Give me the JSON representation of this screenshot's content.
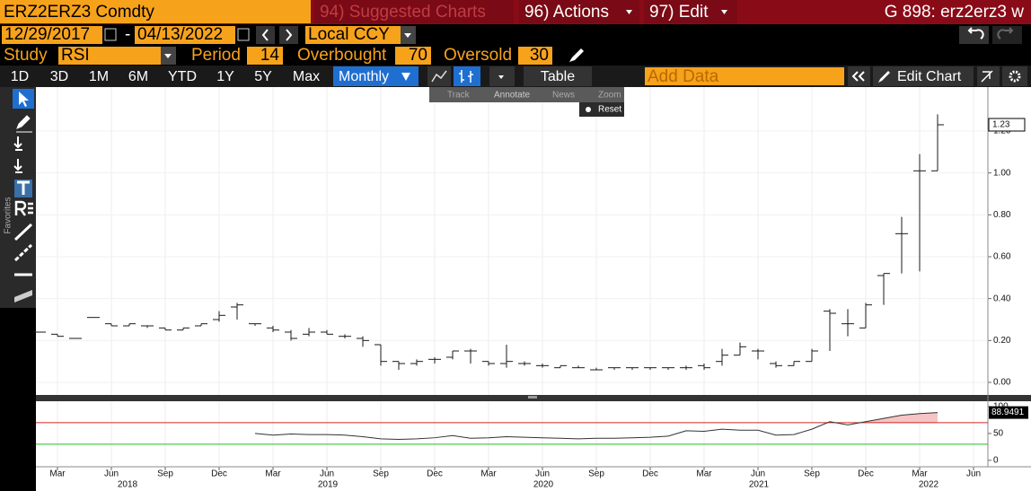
{
  "title_bar": {
    "ticker": "ERZ2ERZ3 Comdty",
    "suggested": "94) Suggested Charts",
    "actions": "96) Actions",
    "edit": "97) Edit",
    "function": "G 898: erz2erz3 w"
  },
  "date_bar": {
    "start": "12/29/2017",
    "separator": "-",
    "end": "04/13/2022",
    "currency": "Local CCY"
  },
  "study_bar": {
    "study_label": "Study",
    "study": "RSI",
    "period_label": "Period",
    "period": 14,
    "overbought_label": "Overbought",
    "overbought": 70,
    "oversold_label": "Oversold",
    "oversold": 30
  },
  "toolbar": {
    "ranges": [
      "1D",
      "3D",
      "1M",
      "6M",
      "YTD",
      "1Y",
      "5Y",
      "Max"
    ],
    "frequency": "Monthly",
    "table": "Table",
    "add_data": "Add Data",
    "edit_chart": "Edit Chart"
  },
  "sidebar": {
    "favorites": "Favorites"
  },
  "chart_tools": {
    "track": "Track",
    "annotate": "Annotate",
    "news": "News",
    "zoom": "Zoom",
    "reset": "Reset"
  },
  "chart_data": [
    {
      "type": "ohlc",
      "color": "#1a1a1a",
      "grid": true,
      "ylim": [
        -0.06,
        1.41
      ],
      "yticks": [
        {
          "value": 0,
          "label": "0.00"
        },
        {
          "value": 0.2,
          "label": "0.20"
        },
        {
          "value": 0.4,
          "label": "0.40"
        },
        {
          "value": 0.6,
          "label": "0.60"
        },
        {
          "value": 0.8,
          "label": "0.80"
        },
        {
          "value": 1,
          "label": "1.00"
        },
        {
          "value": 1.2,
          "label": "1.20"
        }
      ],
      "open": [
        0.24,
        0.23,
        0.21,
        0.31,
        0.28,
        0.27,
        0.27,
        0.26,
        0.25,
        0.27,
        0.3,
        0.36,
        0.28,
        0.26,
        0.24,
        0.23,
        0.24,
        0.22,
        0.21,
        0.18,
        0.1,
        0.09,
        0.11,
        0.12,
        0.15,
        0.1,
        0.09,
        0.09,
        0.08,
        0.07,
        0.07,
        0.06,
        0.07,
        0.07,
        0.07,
        0.07,
        0.07,
        0.08,
        0.1,
        0.13,
        0.15,
        0.09,
        0.08,
        0.1,
        0.34,
        0.28,
        0.26,
        0.51,
        0.71,
        1.01,
        1.01,
        null,
        null
      ],
      "high": [
        0.24,
        0.23,
        0.21,
        0.31,
        0.28,
        0.28,
        0.27,
        0.26,
        0.26,
        0.28,
        0.34,
        0.38,
        0.28,
        0.27,
        0.25,
        0.26,
        0.25,
        0.23,
        0.22,
        0.18,
        0.1,
        0.11,
        0.12,
        0.15,
        0.16,
        0.1,
        0.18,
        0.1,
        0.09,
        0.08,
        0.08,
        0.07,
        0.07,
        0.07,
        0.07,
        0.07,
        0.08,
        0.09,
        0.16,
        0.19,
        0.16,
        0.1,
        0.1,
        0.16,
        0.35,
        0.35,
        0.38,
        0.52,
        0.79,
        1.09,
        1.28,
        null,
        null
      ],
      "low": [
        0.24,
        0.22,
        0.21,
        0.31,
        0.27,
        0.27,
        0.26,
        0.25,
        0.25,
        0.27,
        0.29,
        0.3,
        0.27,
        0.24,
        0.2,
        0.22,
        0.23,
        0.21,
        0.17,
        0.08,
        0.06,
        0.08,
        0.09,
        0.11,
        0.09,
        0.08,
        0.07,
        0.08,
        0.07,
        0.07,
        0.07,
        0.06,
        0.06,
        0.06,
        0.06,
        0.06,
        0.06,
        0.06,
        0.08,
        0.13,
        0.11,
        0.07,
        0.08,
        0.1,
        0.15,
        0.22,
        0.26,
        0.37,
        0.52,
        0.53,
        1.01,
        null,
        null
      ],
      "close": [
        0.24,
        0.22,
        0.21,
        0.31,
        0.27,
        0.28,
        0.27,
        0.25,
        0.26,
        0.28,
        0.32,
        0.37,
        0.28,
        0.25,
        0.21,
        0.24,
        0.23,
        0.22,
        0.2,
        0.1,
        0.09,
        0.1,
        0.11,
        0.15,
        0.15,
        0.09,
        0.1,
        0.09,
        0.08,
        0.08,
        0.07,
        0.06,
        0.07,
        0.07,
        0.07,
        0.07,
        0.07,
        0.07,
        0.13,
        0.17,
        0.15,
        0.08,
        0.1,
        0.15,
        0.33,
        0.28,
        0.37,
        0.52,
        0.71,
        1.01,
        1.23,
        null,
        null
      ],
      "last_value_label": "1.23"
    },
    {
      "type": "line",
      "color": "#333333",
      "name": "RSI",
      "ylim": [
        -12,
        110
      ],
      "yticks": [
        0,
        50,
        100
      ],
      "categories": [
        null,
        "Mar",
        null,
        null,
        "Jun",
        null,
        null,
        "Sep",
        null,
        null,
        "Dec",
        null,
        null,
        "Mar",
        null,
        null,
        "Jun",
        null,
        null,
        "Sep",
        null,
        null,
        "Dec",
        null,
        null,
        "Mar",
        null,
        null,
        "Jun",
        null,
        null,
        "Sep",
        null,
        null,
        "Dec",
        null,
        null,
        "Mar",
        null,
        null,
        "Jun",
        null,
        null,
        "Sep",
        null,
        null,
        "Dec",
        null,
        null,
        "Mar",
        null,
        null,
        "Jun"
      ],
      "year_labels": [
        "2018",
        "2019",
        "2020",
        "2021",
        "2022"
      ],
      "values": [
        null,
        null,
        null,
        null,
        null,
        null,
        null,
        null,
        null,
        null,
        null,
        null,
        50,
        47,
        49,
        48,
        48,
        47,
        44,
        40,
        39,
        40,
        42,
        46,
        41,
        42,
        44,
        43,
        42,
        41,
        40,
        41,
        41,
        42,
        43,
        45,
        55,
        54,
        58,
        56,
        56,
        47,
        48,
        58,
        72,
        66,
        72,
        78,
        84,
        87,
        88.9491,
        null,
        null
      ],
      "last_value_label": "88.9491"
    }
  ]
}
